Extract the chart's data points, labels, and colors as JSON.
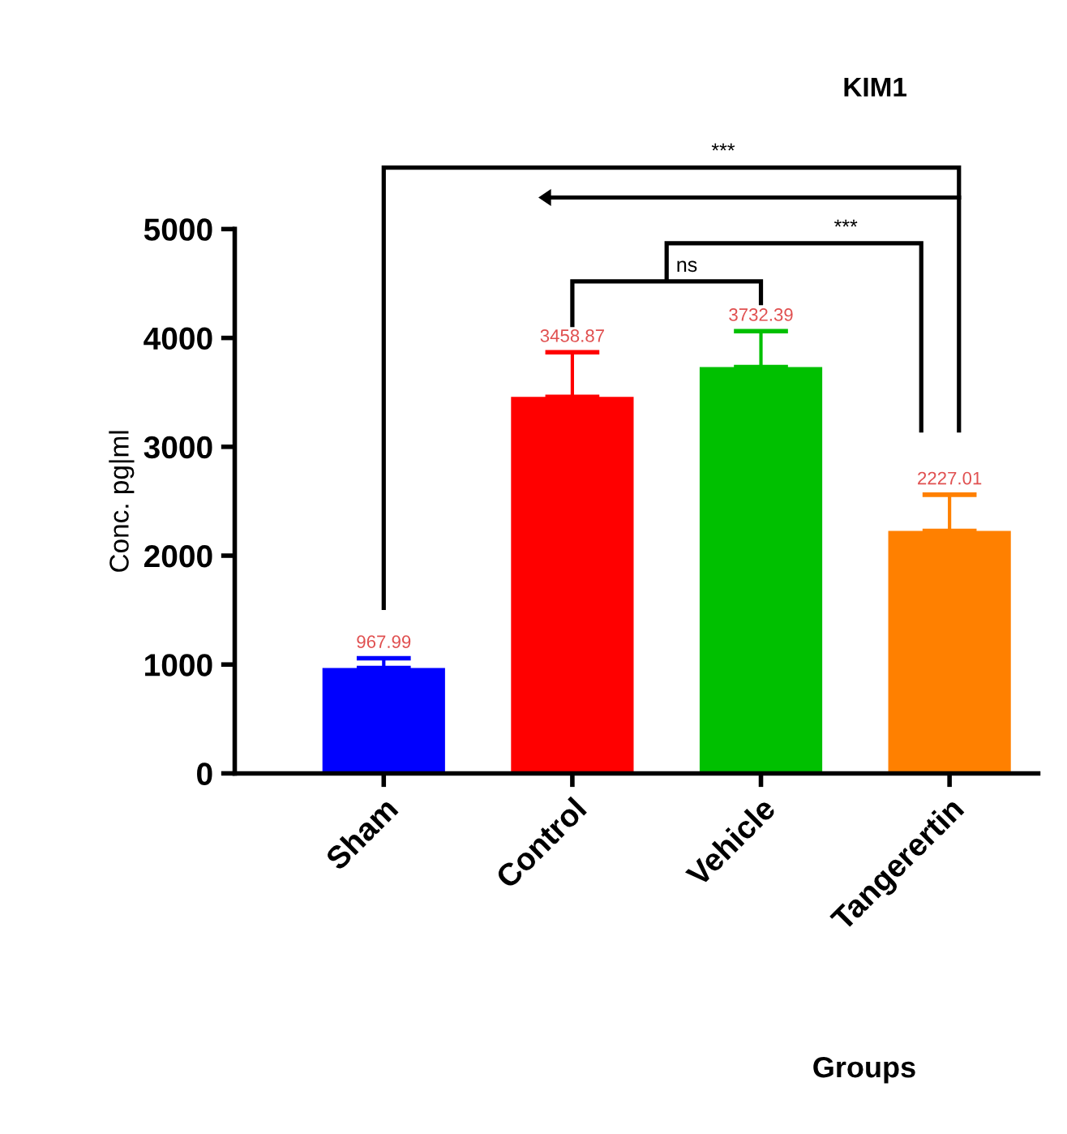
{
  "chart_data": {
    "type": "bar",
    "title": "KIM1",
    "xlabel": "Groups",
    "ylabel": "Conc. pg|ml",
    "categories": [
      "Sham",
      "Control",
      "Vehicle",
      "Tangerertin"
    ],
    "values": [
      967.99,
      3458.87,
      3732.39,
      2227.01
    ],
    "colors": [
      "#0000ff",
      "#ff0000",
      "#00c000",
      "#ff8000"
    ],
    "errors": [
      90,
      410,
      330,
      333
    ],
    "value_labels": [
      "967.99",
      "3458.87",
      "3732.39",
      "2227.01"
    ],
    "ylim": [
      0,
      5000
    ],
    "yticks": [
      0,
      1000,
      2000,
      3000,
      4000,
      5000
    ],
    "grid": false,
    "legend": false,
    "annotations": [
      "***",
      "***",
      "ns"
    ]
  }
}
